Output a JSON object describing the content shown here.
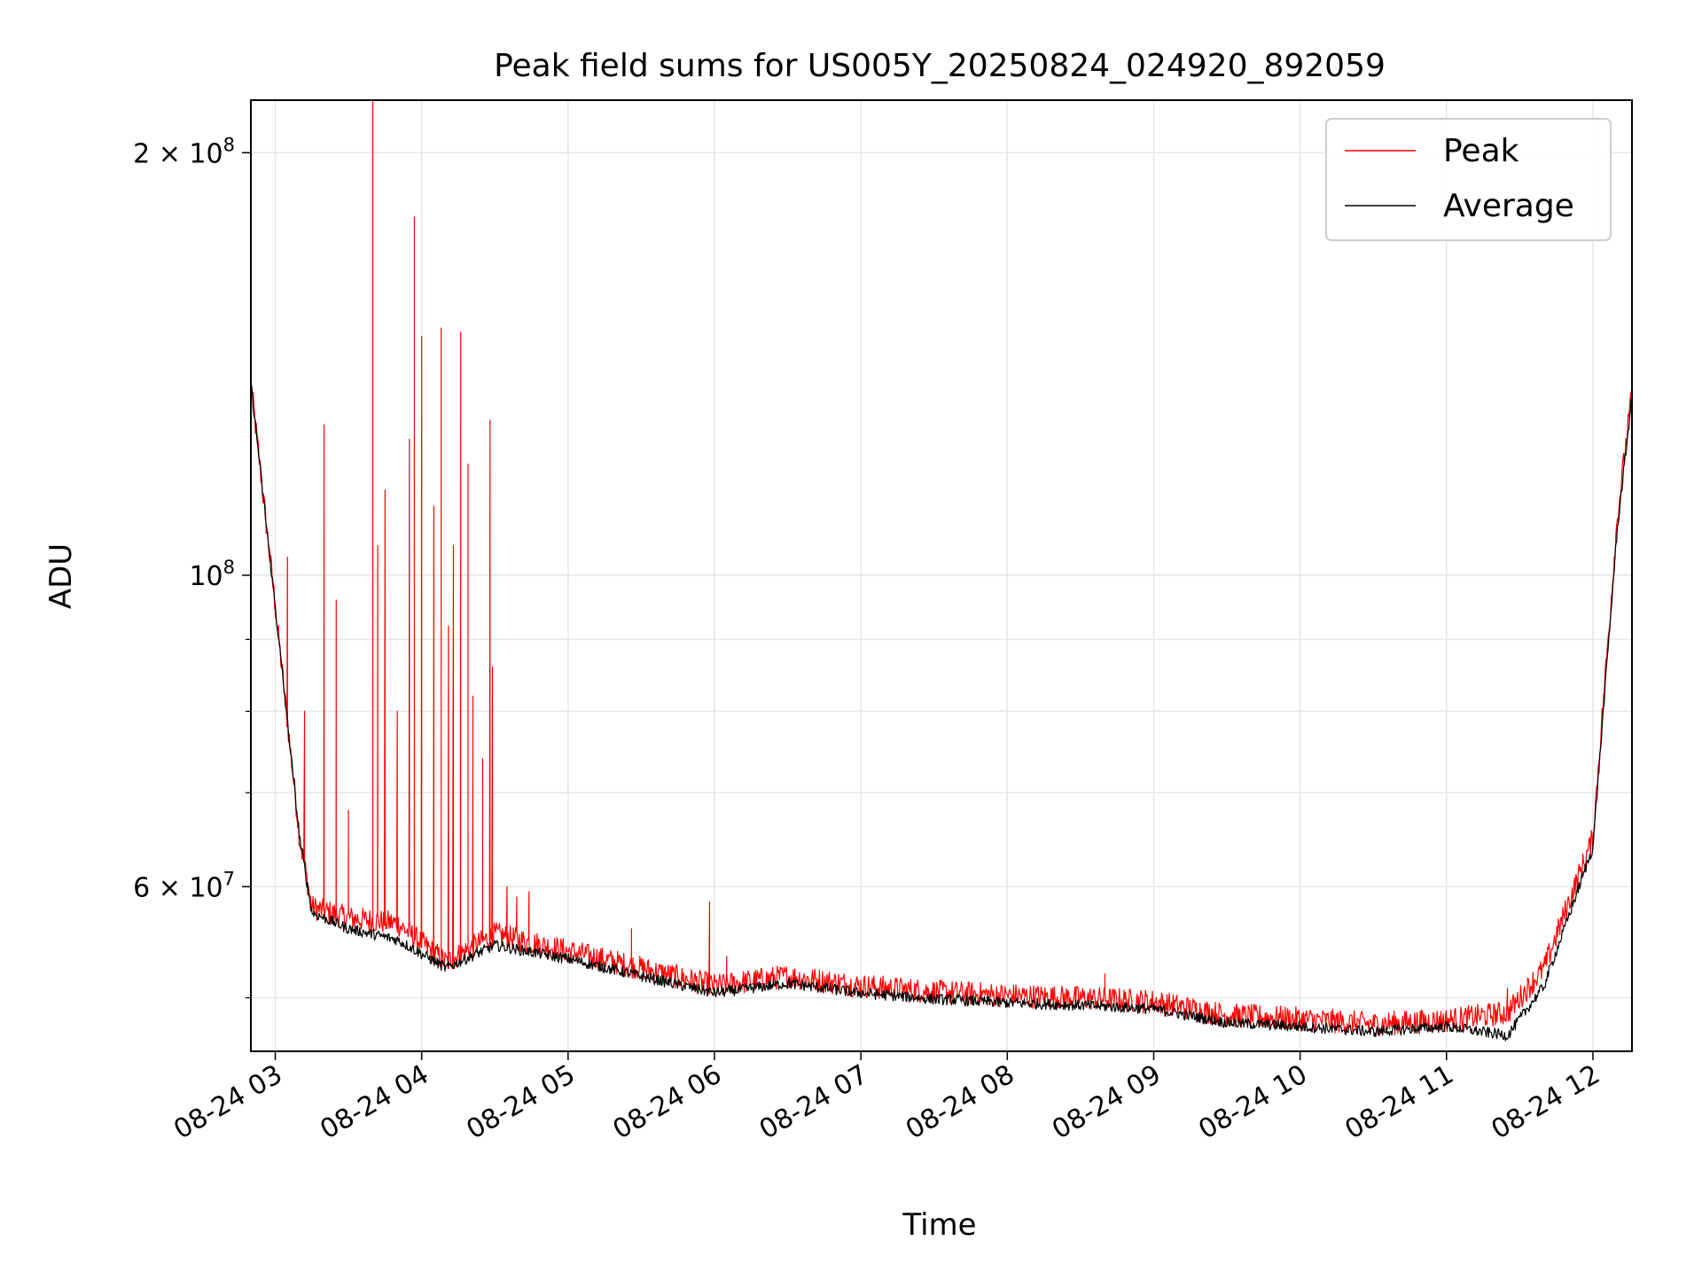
{
  "chart_data": {
    "type": "line",
    "title": "Peak field sums for US005Y_20250824_024920_892059",
    "xlabel": "Time",
    "ylabel": "ADU",
    "x_range": [
      "2025-08-24 02:50",
      "2025-08-24 12:16"
    ],
    "y_scale": "log",
    "ylim": [
      45800000,
      218000000
    ],
    "grid": true,
    "legend_position": "upper right",
    "x_ticks": [
      {
        "value": "2025-08-24 03:00",
        "label": "08-24 03"
      },
      {
        "value": "2025-08-24 04:00",
        "label": "08-24 04"
      },
      {
        "value": "2025-08-24 05:00",
        "label": "08-24 05"
      },
      {
        "value": "2025-08-24 06:00",
        "label": "08-24 06"
      },
      {
        "value": "2025-08-24 07:00",
        "label": "08-24 07"
      },
      {
        "value": "2025-08-24 08:00",
        "label": "08-24 08"
      },
      {
        "value": "2025-08-24 09:00",
        "label": "08-24 09"
      },
      {
        "value": "2025-08-24 10:00",
        "label": "08-24 10"
      },
      {
        "value": "2025-08-24 11:00",
        "label": "08-24 11"
      },
      {
        "value": "2025-08-24 12:00",
        "label": "08-24 12"
      }
    ],
    "y_ticks_major": [
      {
        "value": 100000000,
        "base": "10",
        "exp": "8",
        "mant": ""
      },
      {
        "value": 200000000,
        "base": "10",
        "exp": "8",
        "mant": "2"
      },
      {
        "value": 60000000,
        "base": "10",
        "exp": "7",
        "mant": "6"
      }
    ],
    "y_ticks_minor": [
      50000000,
      70000000,
      80000000,
      90000000
    ],
    "series": [
      {
        "name": "Peak",
        "color": "#ff0000",
        "baseline_points": [
          {
            "x": "2025-08-24 02:50",
            "y": 137000000
          },
          {
            "x": "2025-08-24 03:00",
            "y": 95000000
          },
          {
            "x": "2025-08-24 03:10",
            "y": 65000000
          },
          {
            "x": "2025-08-24 03:15",
            "y": 58000000
          },
          {
            "x": "2025-08-24 03:30",
            "y": 57000000
          },
          {
            "x": "2025-08-24 03:50",
            "y": 56500000
          },
          {
            "x": "2025-08-24 04:10",
            "y": 53000000
          },
          {
            "x": "2025-08-24 04:30",
            "y": 55500000
          },
          {
            "x": "2025-08-24 05:00",
            "y": 54000000
          },
          {
            "x": "2025-08-24 05:30",
            "y": 52500000
          },
          {
            "x": "2025-08-24 06:00",
            "y": 51000000
          },
          {
            "x": "2025-08-24 06:30",
            "y": 51800000
          },
          {
            "x": "2025-08-24 07:00",
            "y": 51000000
          },
          {
            "x": "2025-08-24 07:30",
            "y": 50500000
          },
          {
            "x": "2025-08-24 08:00",
            "y": 50200000
          },
          {
            "x": "2025-08-24 08:30",
            "y": 50000000
          },
          {
            "x": "2025-08-24 09:00",
            "y": 49700000
          },
          {
            "x": "2025-08-24 09:30",
            "y": 48600000
          },
          {
            "x": "2025-08-24 10:00",
            "y": 48300000
          },
          {
            "x": "2025-08-24 10:30",
            "y": 47900000
          },
          {
            "x": "2025-08-24 11:00",
            "y": 48200000
          },
          {
            "x": "2025-08-24 11:25",
            "y": 48800000
          },
          {
            "x": "2025-08-24 11:40",
            "y": 52500000
          },
          {
            "x": "2025-08-24 12:00",
            "y": 65000000
          },
          {
            "x": "2025-08-24 12:10",
            "y": 110000000
          },
          {
            "x": "2025-08-24 12:16",
            "y": 135000000
          }
        ],
        "spikes": [
          {
            "x": "2025-08-24 03:00",
            "y": 95000000
          },
          {
            "x": "2025-08-24 03:05",
            "y": 103000000
          },
          {
            "x": "2025-08-24 03:12",
            "y": 80000000
          },
          {
            "x": "2025-08-24 03:20",
            "y": 128000000
          },
          {
            "x": "2025-08-24 03:25",
            "y": 96000000
          },
          {
            "x": "2025-08-24 03:30",
            "y": 68000000
          },
          {
            "x": "2025-08-24 03:40",
            "y": 218000000
          },
          {
            "x": "2025-08-24 03:42",
            "y": 105000000
          },
          {
            "x": "2025-08-24 03:45",
            "y": 115000000
          },
          {
            "x": "2025-08-24 03:50",
            "y": 80000000
          },
          {
            "x": "2025-08-24 03:55",
            "y": 125000000
          },
          {
            "x": "2025-08-24 03:57",
            "y": 180000000
          },
          {
            "x": "2025-08-24 04:00",
            "y": 148000000
          },
          {
            "x": "2025-08-24 04:05",
            "y": 112000000
          },
          {
            "x": "2025-08-24 04:08",
            "y": 150000000
          },
          {
            "x": "2025-08-24 04:11",
            "y": 92000000
          },
          {
            "x": "2025-08-24 04:13",
            "y": 105000000
          },
          {
            "x": "2025-08-24 04:16",
            "y": 149000000
          },
          {
            "x": "2025-08-24 04:19",
            "y": 120000000
          },
          {
            "x": "2025-08-24 04:21",
            "y": 82000000
          },
          {
            "x": "2025-08-24 04:25",
            "y": 74000000
          },
          {
            "x": "2025-08-24 04:28",
            "y": 129000000
          },
          {
            "x": "2025-08-24 04:29",
            "y": 86000000
          },
          {
            "x": "2025-08-24 04:35",
            "y": 60000000
          },
          {
            "x": "2025-08-24 04:39",
            "y": 59000000
          },
          {
            "x": "2025-08-24 04:44",
            "y": 59500000
          },
          {
            "x": "2025-08-24 05:26",
            "y": 56000000
          },
          {
            "x": "2025-08-24 05:58",
            "y": 58500000
          },
          {
            "x": "2025-08-24 06:05",
            "y": 53500000
          },
          {
            "x": "2025-08-24 08:40",
            "y": 52000000
          },
          {
            "x": "2025-08-24 11:25",
            "y": 50800000
          }
        ]
      },
      {
        "name": "Average",
        "color": "#000000",
        "baseline_points": [
          {
            "x": "2025-08-24 02:50",
            "y": 137000000
          },
          {
            "x": "2025-08-24 03:00",
            "y": 95000000
          },
          {
            "x": "2025-08-24 03:10",
            "y": 65000000
          },
          {
            "x": "2025-08-24 03:15",
            "y": 57500000
          },
          {
            "x": "2025-08-24 03:30",
            "y": 56000000
          },
          {
            "x": "2025-08-24 03:50",
            "y": 55000000
          },
          {
            "x": "2025-08-24 04:10",
            "y": 52500000
          },
          {
            "x": "2025-08-24 04:30",
            "y": 54500000
          },
          {
            "x": "2025-08-24 05:00",
            "y": 53300000
          },
          {
            "x": "2025-08-24 05:30",
            "y": 51800000
          },
          {
            "x": "2025-08-24 06:00",
            "y": 50400000
          },
          {
            "x": "2025-08-24 06:30",
            "y": 51200000
          },
          {
            "x": "2025-08-24 07:00",
            "y": 50400000
          },
          {
            "x": "2025-08-24 07:30",
            "y": 49900000
          },
          {
            "x": "2025-08-24 08:00",
            "y": 49600000
          },
          {
            "x": "2025-08-24 08:30",
            "y": 49400000
          },
          {
            "x": "2025-08-24 09:00",
            "y": 49100000
          },
          {
            "x": "2025-08-24 09:30",
            "y": 48000000
          },
          {
            "x": "2025-08-24 10:00",
            "y": 47700000
          },
          {
            "x": "2025-08-24 10:30",
            "y": 47300000
          },
          {
            "x": "2025-08-24 11:00",
            "y": 47700000
          },
          {
            "x": "2025-08-24 11:25",
            "y": 47000000
          },
          {
            "x": "2025-08-24 11:40",
            "y": 51000000
          },
          {
            "x": "2025-08-24 12:00",
            "y": 64000000
          },
          {
            "x": "2025-08-24 12:10",
            "y": 108000000
          },
          {
            "x": "2025-08-24 12:16",
            "y": 134000000
          }
        ]
      }
    ]
  }
}
